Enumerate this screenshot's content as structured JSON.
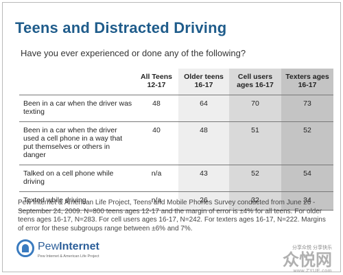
{
  "title": "Teens and Distracted Driving",
  "question": "Have you ever experienced or done any of the following?",
  "chart_data": {
    "type": "table",
    "columns": [
      "",
      "All Teens 12-17",
      "Older teens 16-17",
      "Cell users ages 16-17",
      "Texters ages 16-17"
    ],
    "rows": [
      {
        "label": "Been in a car when the driver was texting",
        "values": [
          "48",
          "64",
          "70",
          "73"
        ]
      },
      {
        "label": "Been in a car when the driver used a cell phone in a way that put themselves or others in danger",
        "values": [
          "40",
          "48",
          "51",
          "52"
        ]
      },
      {
        "label": "Talked on a cell phone while driving",
        "values": [
          "n/a",
          "43",
          "52",
          "54"
        ]
      },
      {
        "label": "Texted while driving",
        "values": [
          "n/a",
          "26",
          "32",
          "34"
        ]
      }
    ]
  },
  "footnote": "Pew Internet & American Life Project, Teens and Mobile Phones Survey conducted from June 26 - September 24, 2009. N=800 teens ages 12-17 and the margin of error is ±4% for all teens. For older teens ages 16-17, N=283. For cell users ages 16-17, N=242. For texters ages 16-17, N=222. Margins of error for these subgroups range between ±6% and 7%.",
  "logo": {
    "name_light": "Pew",
    "name_bold": "Internet",
    "subtitle": "Pew Internet & American Life Project"
  },
  "watermark": {
    "top": "分享众悦 分享快乐",
    "main": "众悦网",
    "url": "www.ZYUE.com"
  },
  "colors": {
    "title": "#1f5c8b",
    "col2_bg": "#eeeeee",
    "col3_bg": "#d9d9d9",
    "col4_bg": "#c4c4c4"
  }
}
